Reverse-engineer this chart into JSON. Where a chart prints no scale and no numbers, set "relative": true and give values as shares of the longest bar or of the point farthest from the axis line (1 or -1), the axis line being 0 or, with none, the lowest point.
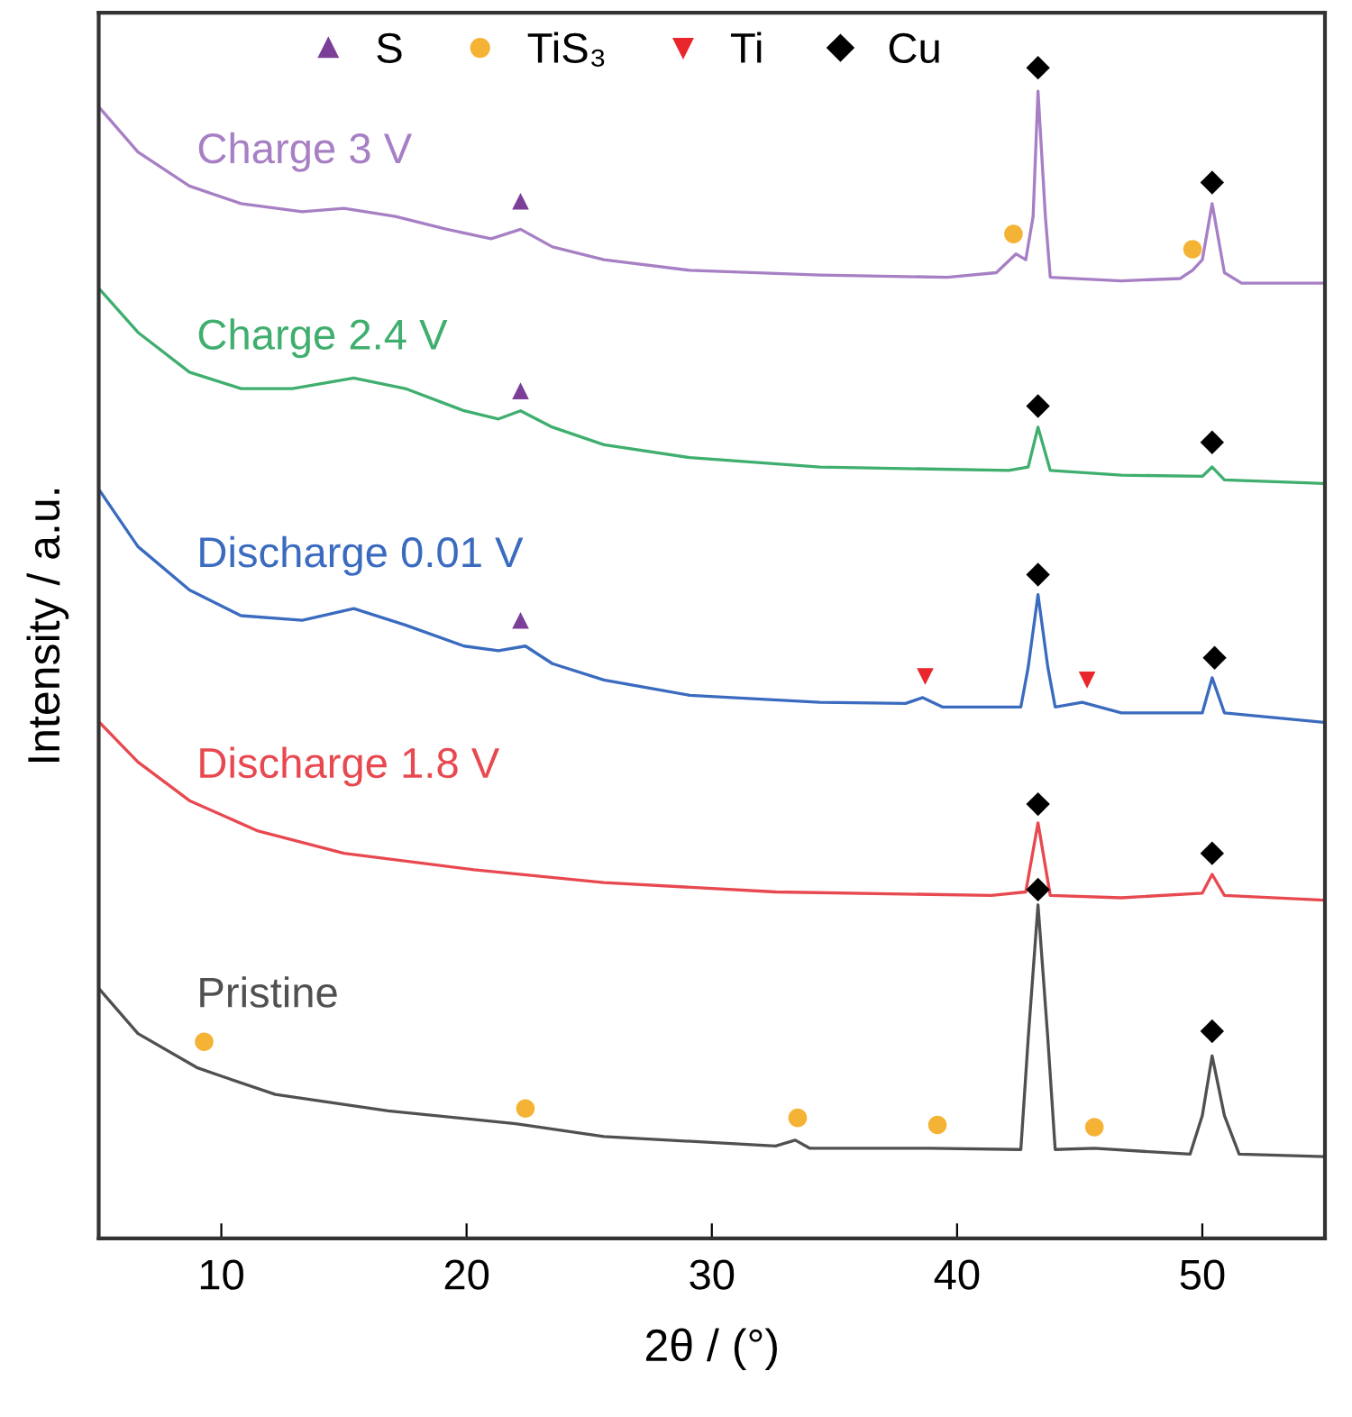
{
  "chart_data": {
    "type": "line",
    "relative": true,
    "xlabel": "2θ / (°)",
    "ylabel": "Intensity / a.u.",
    "xlim": [
      5,
      55
    ],
    "xticks": [
      10,
      20,
      30,
      40,
      50
    ],
    "tick_labels": "x",
    "grid": false,
    "legend": "top",
    "series": [
      {
        "name": "Charge 3 V",
        "color": "#a77fc4",
        "x": [
          5.07,
          6.6,
          8.7,
          10.8,
          13.3,
          15.0,
          17.1,
          19.2,
          21.0,
          22.2,
          23.5,
          25.6,
          29.1,
          34.4,
          39.6,
          41.6,
          42.4,
          42.8,
          43.1,
          43.3,
          43.6,
          43.8,
          46.7,
          49.1,
          49.6,
          50.0,
          50.4,
          50.9,
          51.6,
          54.9
        ],
        "values": [
          0.965,
          0.928,
          0.899,
          0.884,
          0.877,
          0.88,
          0.873,
          0.862,
          0.854,
          0.862,
          0.847,
          0.836,
          0.827,
          0.823,
          0.821,
          0.825,
          0.841,
          0.836,
          0.873,
          0.98,
          0.873,
          0.821,
          0.818,
          0.82,
          0.827,
          0.836,
          0.884,
          0.825,
          0.816,
          0.816
        ]
      },
      {
        "name": "Charge 2.4 V",
        "color": "#3fae6e",
        "x": [
          5.07,
          6.6,
          8.7,
          10.8,
          12.9,
          15.4,
          17.5,
          19.9,
          21.3,
          22.2,
          23.5,
          25.6,
          29.1,
          34.4,
          42.1,
          42.9,
          43.3,
          43.8,
          46.7,
          50.0,
          50.4,
          50.9,
          54.9
        ],
        "values": [
          0.81,
          0.774,
          0.74,
          0.726,
          0.726,
          0.735,
          0.726,
          0.707,
          0.7,
          0.707,
          0.693,
          0.678,
          0.667,
          0.659,
          0.656,
          0.659,
          0.693,
          0.656,
          0.652,
          0.651,
          0.659,
          0.648,
          0.645
        ]
      },
      {
        "name": "Discharge 0.01 V",
        "color": "#3a6bbf",
        "x": [
          5.07,
          6.6,
          8.7,
          10.8,
          13.3,
          15.4,
          17.5,
          19.9,
          21.3,
          22.4,
          23.5,
          25.6,
          29.1,
          34.4,
          37.9,
          38.6,
          39.4,
          42.6,
          42.9,
          43.3,
          43.7,
          44.0,
          45.1,
          46.7,
          50.0,
          50.4,
          50.9,
          54.9
        ],
        "values": [
          0.638,
          0.591,
          0.554,
          0.532,
          0.528,
          0.538,
          0.524,
          0.506,
          0.502,
          0.506,
          0.491,
          0.477,
          0.464,
          0.458,
          0.457,
          0.462,
          0.454,
          0.454,
          0.488,
          0.55,
          0.488,
          0.454,
          0.458,
          0.449,
          0.449,
          0.479,
          0.449,
          0.441
        ]
      },
      {
        "name": "Discharge 1.8 V",
        "color": "#e8484f",
        "x": [
          5.07,
          6.6,
          8.7,
          11.5,
          15.0,
          20.3,
          25.6,
          32.6,
          41.4,
          42.8,
          43.3,
          43.8,
          46.7,
          50.0,
          50.4,
          50.9,
          54.9
        ],
        "values": [
          0.44,
          0.407,
          0.374,
          0.348,
          0.329,
          0.315,
          0.304,
          0.296,
          0.293,
          0.296,
          0.355,
          0.293,
          0.291,
          0.295,
          0.311,
          0.293,
          0.289
        ]
      },
      {
        "name": "Pristine",
        "color": "#505050",
        "x": [
          5.07,
          6.6,
          9.0,
          10.1,
          12.2,
          16.8,
          22.0,
          25.6,
          32.6,
          33.4,
          34.0,
          38.9,
          42.6,
          42.9,
          43.3,
          43.7,
          44.0,
          45.6,
          49.5,
          50.0,
          50.4,
          50.9,
          51.5,
          54.9
        ],
        "values": [
          0.212,
          0.175,
          0.146,
          0.138,
          0.123,
          0.109,
          0.098,
          0.087,
          0.079,
          0.084,
          0.077,
          0.077,
          0.076,
          0.171,
          0.285,
          0.171,
          0.076,
          0.077,
          0.072,
          0.105,
          0.156,
          0.105,
          0.072,
          0.07
        ]
      },
      {
        "name": "S",
        "type": "scatter",
        "marker": "triangle",
        "color": "#7b3f98",
        "x": [
          22.2,
          22.2,
          22.2
        ],
        "values": [
          0.886,
          0.724,
          0.528
        ]
      },
      {
        "name": "TiS₃",
        "type": "scatter",
        "marker": "circle",
        "color": "#f5b335",
        "x": [
          42.3,
          49.6,
          9.3,
          22.4,
          33.5,
          39.2,
          45.6
        ],
        "values": [
          0.858,
          0.845,
          0.168,
          0.111,
          0.103,
          0.097,
          0.095
        ]
      },
      {
        "name": "Ti",
        "type": "scatter",
        "marker": "triangle_down",
        "color": "#e8262c",
        "x": [
          38.7,
          45.3
        ],
        "values": [
          0.48,
          0.477
        ]
      },
      {
        "name": "Cu",
        "type": "scatter",
        "marker": "diamond",
        "color": "#000000",
        "x": [
          43.3,
          50.4,
          43.3,
          50.4,
          43.3,
          50.5,
          43.3,
          50.4,
          43.3,
          50.4
        ],
        "values": [
          1.0,
          0.902,
          0.711,
          0.68,
          0.567,
          0.496,
          0.371,
          0.329,
          0.298,
          0.177
        ]
      }
    ]
  }
}
